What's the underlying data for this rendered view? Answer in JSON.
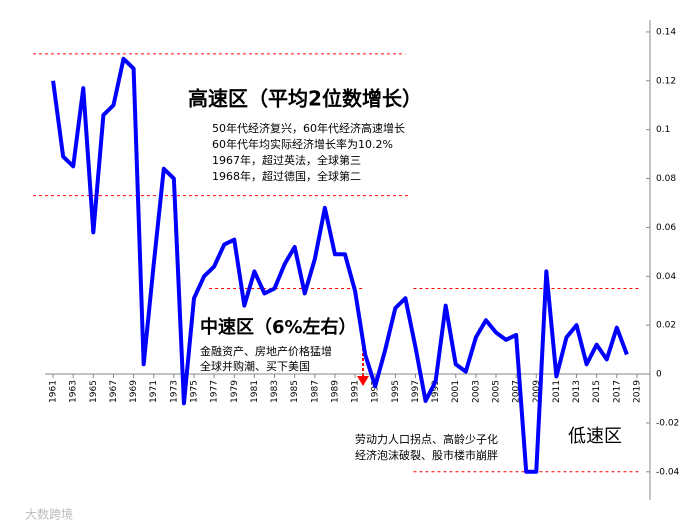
{
  "chart_data": {
    "type": "line",
    "x": [
      1961,
      1962,
      1963,
      1964,
      1965,
      1966,
      1967,
      1968,
      1969,
      1970,
      1971,
      1972,
      1973,
      1974,
      1975,
      1976,
      1977,
      1978,
      1979,
      1980,
      1981,
      1982,
      1983,
      1984,
      1985,
      1986,
      1987,
      1988,
      1989,
      1990,
      1991,
      1992,
      1993,
      1994,
      1995,
      1996,
      1997,
      1998,
      1999,
      2000,
      2001,
      2002,
      2003,
      2004,
      2005,
      2006,
      2007,
      2008,
      2009,
      2010,
      2011,
      2012,
      2013,
      2014,
      2015,
      2016,
      2017,
      2018
    ],
    "series": [
      {
        "color": "#0000ff",
        "values": [
          0.12,
          0.089,
          0.085,
          0.117,
          0.058,
          0.106,
          0.11,
          0.129,
          0.125,
          0.004,
          0.045,
          0.084,
          0.08,
          -0.012,
          0.031,
          0.04,
          0.044,
          0.053,
          0.055,
          0.028,
          0.042,
          0.033,
          0.035,
          0.045,
          0.052,
          0.033,
          0.047,
          0.068,
          0.049,
          0.049,
          0.034,
          0.008,
          -0.005,
          0.01,
          0.027,
          0.031,
          0.011,
          -0.011,
          -0.003,
          0.028,
          0.004,
          0.001,
          0.015,
          0.022,
          0.017,
          0.014,
          0.016,
          -0.04,
          -0.04,
          0.042,
          -0.001,
          0.015,
          0.02,
          0.004,
          0.012,
          0.006,
          0.019,
          0.008
        ]
      }
    ],
    "xlim": [
      1960,
      2020
    ],
    "xticks": [
      1961,
      1963,
      1965,
      1967,
      1969,
      1971,
      1973,
      1975,
      1977,
      1979,
      1981,
      1983,
      1985,
      1987,
      1989,
      1991,
      1993,
      1995,
      1997,
      1999,
      2001,
      2003,
      2005,
      2007,
      2009,
      2011,
      2013,
      2015,
      2017,
      2019
    ],
    "ylim": [
      -0.045,
      0.15
    ],
    "yticks": [
      -0.04,
      -0.02,
      0,
      0.02,
      0.04,
      0.06,
      0.08,
      0.1,
      0.12,
      0.14
    ],
    "reference_lines": [
      {
        "value": 0.131,
        "from": 1959,
        "to": 1996,
        "color": "#ff0000"
      },
      {
        "value": 0.073,
        "from": 1959,
        "to": 1996.5,
        "color": "#ff0000"
      },
      {
        "value": 0.035,
        "from": 1976.5,
        "to": 1992,
        "color": "#ff0000"
      },
      {
        "value": 0.035,
        "from": 1996.8,
        "to": 2019.3,
        "color": "#ff0000"
      },
      {
        "value": -0.04,
        "from": 1996.8,
        "to": 2019.3,
        "color": "#ff0000"
      }
    ],
    "annotations": {
      "high": "高速区（平均2位数增长）",
      "high_notes": [
        "50年代经济复兴，60年代经济高速增长",
        "60年代年均实际经济增长率为10.2%",
        "1967年，超过英法，全球第三",
        "1968年，超过德国，全球第二"
      ],
      "mid": "中速区（6%左右）",
      "mid_notes": [
        "金融资产、房地产价格猛增",
        "全球并购潮、买下美国"
      ],
      "low": "低速区",
      "low_notes": [
        "劳动力人口拐点、高龄少子化",
        "经济泡沫破裂、股市楼市崩胖"
      ]
    },
    "watermark": "大数跨境"
  }
}
